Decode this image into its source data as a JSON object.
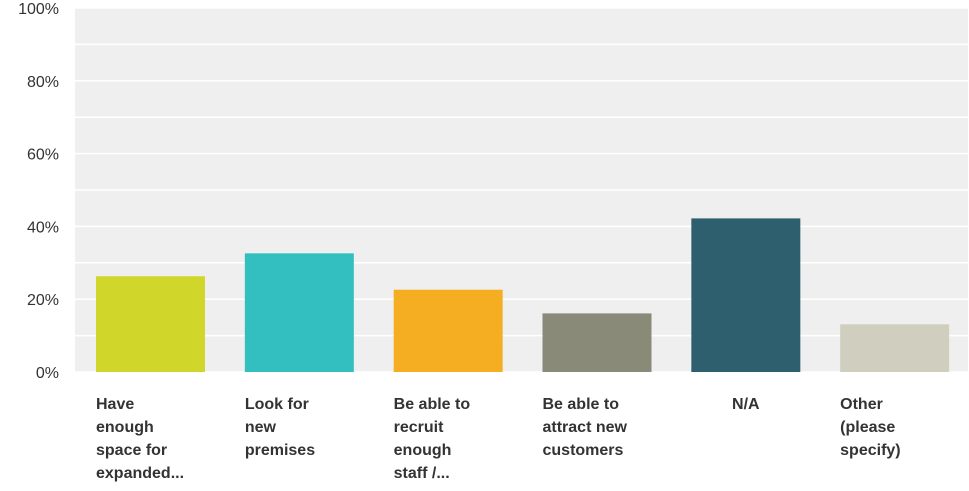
{
  "chart_data": {
    "type": "bar",
    "categories": [
      "Have enough space for expanded...",
      "Look for new premises",
      "Be able to recruit enough staff /...",
      "Be able to attract new customers",
      "N/A",
      "Other (please specify)"
    ],
    "category_lines": [
      [
        "Have",
        "enough",
        "space for",
        "expanded..."
      ],
      [
        "Look for",
        "new",
        "premises"
      ],
      [
        "Be able to",
        "recruit",
        "enough",
        "staff /..."
      ],
      [
        "Be able to",
        "attract new",
        "customers"
      ],
      [
        "N/A"
      ],
      [
        "Other",
        "(please",
        "specify)"
      ]
    ],
    "values": [
      26.3,
      32.6,
      22.6,
      16.1,
      42.2,
      13.1
    ],
    "colors": [
      "#d0d62a",
      "#33bec0",
      "#f5ae21",
      "#8a8a79",
      "#2e5f6e",
      "#cfcebf"
    ],
    "ylim": [
      0,
      100
    ],
    "yticks": [
      0,
      20,
      40,
      60,
      80,
      100
    ],
    "ytick_labels": [
      "0%",
      "20%",
      "40%",
      "60%",
      "80%",
      "100%"
    ],
    "grid": true,
    "title": "",
    "xlabel": "",
    "ylabel": ""
  }
}
